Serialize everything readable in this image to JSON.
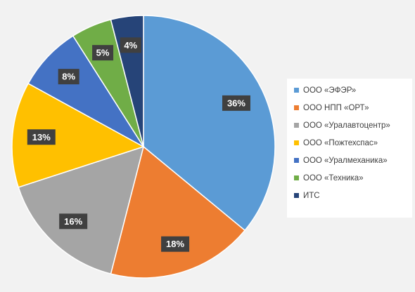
{
  "chart_data": {
    "type": "pie",
    "slices": [
      {
        "label": "ООО «ЭФЭР»",
        "value": 36,
        "value_label": "36%",
        "color": "#5b9bd5"
      },
      {
        "label": "ООО НПП «ОРТ»",
        "value": 18,
        "value_label": "18%",
        "color": "#ed7d31"
      },
      {
        "label": "ООО «Уралавтоцентр»",
        "value": 16,
        "value_label": "16%",
        "color": "#a5a5a5"
      },
      {
        "label": "ООО «Пожтехспас»",
        "value": 13,
        "value_label": "13%",
        "color": "#ffc000"
      },
      {
        "label": "ООО «Уралмеханика»",
        "value": 8,
        "value_label": "8%",
        "color": "#4472c4"
      },
      {
        "label": "ООО «Техника»",
        "value": 5,
        "value_label": "5%",
        "color": "#70ad47"
      },
      {
        "label": "ИТС",
        "value": 4,
        "value_label": "4%",
        "color": "#264478"
      }
    ],
    "start": "12 o'clock",
    "direction": "clockwise",
    "legend_position": "right",
    "data_label_style": "dark box, white bold text"
  }
}
